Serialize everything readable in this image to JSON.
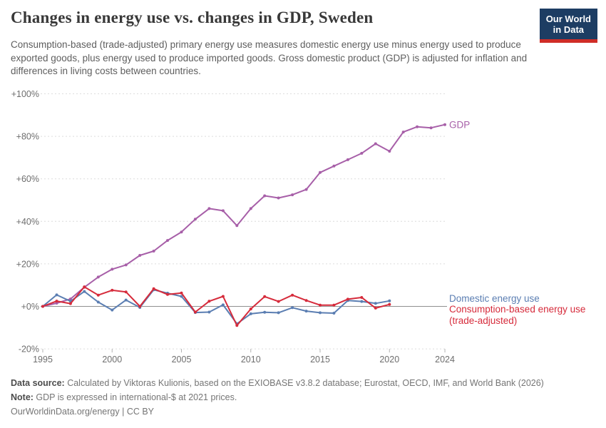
{
  "header": {
    "title": "Changes in energy use vs. changes in GDP, Sweden",
    "subtitle": "Consumption-based (trade-adjusted) primary energy use measures domestic energy use minus energy used to produce exported goods, plus energy used to produce imported goods. Gross domestic product (GDP) is adjusted for inflation and differences in living costs between countries.",
    "logo": {
      "line1": "Our World",
      "line2": "in Data"
    }
  },
  "chart_data": {
    "type": "line",
    "title": "Changes in energy use vs. changes in GDP, Sweden",
    "xlabel": "",
    "ylabel": "",
    "x": [
      1995,
      1996,
      1997,
      1998,
      1999,
      2000,
      2001,
      2002,
      2003,
      2004,
      2005,
      2006,
      2007,
      2008,
      2009,
      2010,
      2011,
      2012,
      2013,
      2014,
      2015,
      2016,
      2017,
      2018,
      2019,
      2020,
      2021,
      2022,
      2023,
      2024
    ],
    "series": [
      {
        "id": "gdp",
        "name": "GDP",
        "label_lines": [
          "GDP"
        ],
        "color": "#a75fa8",
        "unit": "% change since 1995",
        "values": [
          0,
          1.5,
          3.5,
          9,
          13.8,
          17.5,
          19.5,
          24,
          26,
          31,
          35,
          41,
          46,
          45,
          38,
          46,
          52,
          51,
          52.5,
          55,
          63,
          66,
          69,
          72,
          76.5,
          73,
          82,
          84.5,
          84,
          85.5
        ]
      },
      {
        "id": "domestic-energy",
        "name": "Domestic energy use",
        "label_lines": [
          "Domestic energy use"
        ],
        "color": "#5b7eb2",
        "unit": "% change since 1995",
        "values": [
          0,
          5.4,
          2.4,
          7,
          2,
          -1.7,
          3,
          -0.5,
          7.8,
          6.2,
          4.7,
          -2.9,
          -2.7,
          0.7,
          -8.2,
          -3.5,
          -2.8,
          -3,
          -0.6,
          -2.2,
          -3,
          -3.2,
          2.8,
          2.3,
          1.4,
          2.6,
          null,
          null,
          null,
          null
        ]
      },
      {
        "id": "consumption-energy",
        "name": "Consumption-based energy use (trade-adjusted)",
        "label_lines": [
          "Consumption-based energy use",
          "(trade-adjusted)"
        ],
        "color": "#d62b3b",
        "unit": "% change since 1995",
        "values": [
          0,
          2.5,
          1.3,
          9.2,
          5.3,
          7.6,
          6.8,
          0,
          8.3,
          5.6,
          6.3,
          -2.7,
          2.4,
          4.7,
          -9,
          -1.2,
          4.6,
          2.3,
          5.3,
          2.8,
          0.6,
          0.6,
          3.4,
          4.2,
          -0.8,
          0.9,
          null,
          null,
          null,
          null
        ]
      }
    ],
    "ylim": [
      -20,
      100
    ],
    "yticks": [
      100,
      80,
      60,
      40,
      20,
      0,
      -20
    ],
    "ytick_labels": [
      "+100%",
      "+80%",
      "+60%",
      "+40%",
      "+20%",
      "+0%",
      "-20%"
    ],
    "xticks": [
      1995,
      2000,
      2005,
      2010,
      2015,
      2020,
      2024
    ],
    "grid": "horizontal dashed gridlines, solid zero line",
    "legend_position": "end-of-line labels at right"
  },
  "footer": {
    "source_label": "Data source:",
    "source_text": " Calculated by Viktoras Kulionis, based on the EXIOBASE v3.8.2 database; Eurostat, OECD, IMF, and World Bank (2026)",
    "note_label": "Note:",
    "note_text": " GDP is expressed in international-$ at 2021 prices.",
    "url_text": "OurWorldinData.org/energy",
    "license_text": " | CC BY"
  }
}
